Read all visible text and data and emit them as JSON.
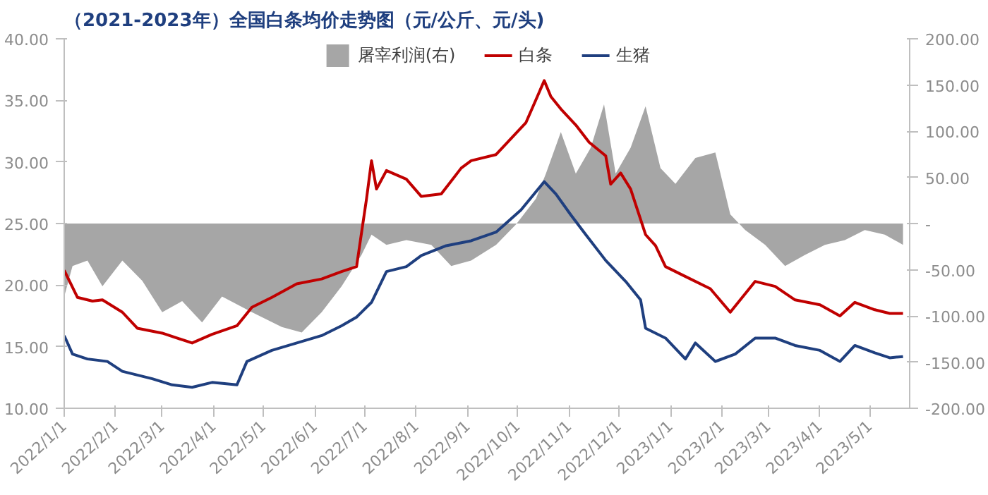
{
  "chart_data": {
    "type": "line",
    "title": "（2021-2023年）全国白条均价走势图（元/公斤、元/头)",
    "xlim": [
      "2022-01-01",
      "2023-05-25"
    ],
    "xticks": [
      {
        "value": "2022-01-01",
        "label": "2022/1/1"
      },
      {
        "value": "2022-02-01",
        "label": "2022/2/1"
      },
      {
        "value": "2022-03-01",
        "label": "2022/3/1"
      },
      {
        "value": "2022-04-01",
        "label": "2022/4/1"
      },
      {
        "value": "2022-05-01",
        "label": "2022/5/1"
      },
      {
        "value": "2022-06-01",
        "label": "2022/6/1"
      },
      {
        "value": "2022-07-01",
        "label": "2022/7/1"
      },
      {
        "value": "2022-08-01",
        "label": "2022/8/1"
      },
      {
        "value": "2022-09-01",
        "label": "2022/9/1"
      },
      {
        "value": "2022-10-01",
        "label": "2022/10/1"
      },
      {
        "value": "2022-11-01",
        "label": "2022/11/1"
      },
      {
        "value": "2022-12-01",
        "label": "2022/12/1"
      },
      {
        "value": "2023-01-01",
        "label": "2023/1/1"
      },
      {
        "value": "2023-02-01",
        "label": "2023/2/1"
      },
      {
        "value": "2023-03-01",
        "label": "2023/3/1"
      },
      {
        "value": "2023-04-01",
        "label": "2023/4/1"
      },
      {
        "value": "2023-05-01",
        "label": "2023/5/1"
      }
    ],
    "ylim": [
      10,
      40
    ],
    "yticks": [
      {
        "value": 10,
        "label": "10.00"
      },
      {
        "value": 15,
        "label": "15.00"
      },
      {
        "value": 20,
        "label": "20.00"
      },
      {
        "value": 25,
        "label": "25.00"
      },
      {
        "value": 30,
        "label": "30.00"
      },
      {
        "value": 35,
        "label": "35.00"
      },
      {
        "value": 40,
        "label": "40.00"
      }
    ],
    "y2lim": [
      -200,
      200
    ],
    "y2ticks": [
      {
        "value": -200,
        "label": "-200.00"
      },
      {
        "value": -150,
        "label": "-150.00"
      },
      {
        "value": -100,
        "label": "-100.00"
      },
      {
        "value": -50,
        "label": "-50.00"
      },
      {
        "value": 0,
        "label": "-"
      },
      {
        "value": 50,
        "label": "50.00"
      },
      {
        "value": 100,
        "label": "100.00"
      },
      {
        "value": 150,
        "label": "150.00"
      },
      {
        "value": 200,
        "label": "200.00"
      }
    ],
    "legend": "top",
    "grid": false,
    "series": [
      {
        "name": "屠宰利润(右)",
        "type": "area",
        "axis": "y2",
        "color": "#a6a6a6",
        "x": [
          "2022-01-01",
          "2022-01-06",
          "2022-01-15",
          "2022-01-24",
          "2022-02-05",
          "2022-02-17",
          "2022-03-01",
          "2022-03-13",
          "2022-03-25",
          "2022-04-06",
          "2022-04-24",
          "2022-05-12",
          "2022-05-24",
          "2022-06-05",
          "2022-06-17",
          "2022-06-29",
          "2022-07-05",
          "2022-07-14",
          "2022-07-26",
          "2022-08-10",
          "2022-08-22",
          "2022-09-03",
          "2022-09-18",
          "2022-09-30",
          "2022-10-12",
          "2022-10-18",
          "2022-10-27",
          "2022-11-05",
          "2022-11-14",
          "2022-11-22",
          "2022-11-29",
          "2022-12-08",
          "2022-12-17",
          "2022-12-26",
          "2023-01-04",
          "2023-01-16",
          "2023-01-28",
          "2023-02-06",
          "2023-02-15",
          "2023-02-27",
          "2023-03-11",
          "2023-03-23",
          "2023-04-04",
          "2023-04-16",
          "2023-04-28",
          "2023-05-10",
          "2023-05-21"
        ],
        "values": [
          -79,
          -46,
          -40,
          -68,
          -40,
          -62,
          -96,
          -84,
          -107,
          -79,
          -96,
          -112,
          -118,
          -96,
          -68,
          -34,
          -12,
          -23,
          -18,
          -23,
          -46,
          -40,
          -23,
          -1,
          27,
          54,
          99,
          54,
          82,
          129,
          54,
          82,
          127,
          60,
          43,
          71,
          77,
          10,
          -7,
          -23,
          -46,
          -34,
          -23,
          -18,
          -7,
          -12,
          -23
        ]
      },
      {
        "name": "白条",
        "color": "#c00000",
        "x": [
          "2022-01-01",
          "2022-01-09",
          "2022-01-18",
          "2022-01-24",
          "2022-02-05",
          "2022-02-14",
          "2022-03-01",
          "2022-03-19",
          "2022-03-31",
          "2022-04-15",
          "2022-04-24",
          "2022-05-06",
          "2022-05-21",
          "2022-06-05",
          "2022-06-17",
          "2022-06-26",
          "2022-07-02",
          "2022-07-05",
          "2022-07-08",
          "2022-07-14",
          "2022-07-26",
          "2022-08-04",
          "2022-08-16",
          "2022-08-28",
          "2022-09-03",
          "2022-09-18",
          "2022-10-06",
          "2022-10-17",
          "2022-10-21",
          "2022-10-27",
          "2022-11-05",
          "2022-11-13",
          "2022-11-23",
          "2022-11-26",
          "2022-12-02",
          "2022-12-08",
          "2022-12-17",
          "2022-12-23",
          "2022-12-29",
          "2023-01-10",
          "2023-01-25",
          "2023-02-06",
          "2023-02-21",
          "2023-03-05",
          "2023-03-17",
          "2023-04-01",
          "2023-04-13",
          "2023-04-22",
          "2023-05-04",
          "2023-05-13",
          "2023-05-21"
        ],
        "values": [
          21.2,
          19.0,
          18.7,
          18.8,
          17.8,
          16.5,
          16.1,
          15.3,
          16.0,
          16.7,
          18.2,
          19.0,
          20.1,
          20.5,
          21.1,
          21.5,
          27.0,
          30.1,
          27.8,
          29.3,
          28.6,
          27.2,
          27.4,
          29.5,
          30.1,
          30.6,
          33.2,
          36.6,
          35.3,
          34.3,
          33.0,
          31.6,
          30.5,
          28.2,
          29.1,
          27.8,
          24.1,
          23.2,
          21.5,
          20.7,
          19.7,
          17.8,
          20.3,
          19.9,
          18.8,
          18.4,
          17.5,
          18.6,
          18.0,
          17.7,
          17.7
        ]
      },
      {
        "name": "生猪",
        "color": "#1f3f7f",
        "x": [
          "2022-01-01",
          "2022-01-06",
          "2022-01-15",
          "2022-01-27",
          "2022-02-05",
          "2022-02-23",
          "2022-03-07",
          "2022-03-19",
          "2022-03-31",
          "2022-04-15",
          "2022-04-21",
          "2022-05-06",
          "2022-05-21",
          "2022-06-05",
          "2022-06-17",
          "2022-06-26",
          "2022-07-05",
          "2022-07-14",
          "2022-07-26",
          "2022-08-04",
          "2022-08-19",
          "2022-09-03",
          "2022-09-18",
          "2022-10-03",
          "2022-10-17",
          "2022-10-24",
          "2022-11-02",
          "2022-11-11",
          "2022-11-23",
          "2022-12-05",
          "2022-12-14",
          "2022-12-17",
          "2022-12-29",
          "2023-01-10",
          "2023-01-16",
          "2023-01-28",
          "2023-02-09",
          "2023-02-21",
          "2023-03-05",
          "2023-03-17",
          "2023-04-01",
          "2023-04-13",
          "2023-04-22",
          "2023-05-04",
          "2023-05-13",
          "2023-05-21"
        ],
        "values": [
          15.9,
          14.4,
          14.0,
          13.8,
          13.0,
          12.4,
          11.9,
          11.7,
          12.1,
          11.9,
          13.8,
          14.7,
          15.3,
          15.9,
          16.7,
          17.4,
          18.6,
          21.1,
          21.5,
          22.4,
          23.2,
          23.6,
          24.3,
          26.1,
          28.4,
          27.4,
          25.7,
          24.1,
          22.0,
          20.3,
          18.8,
          16.5,
          15.7,
          14.0,
          15.3,
          13.8,
          14.4,
          15.7,
          15.7,
          15.1,
          14.7,
          13.8,
          15.1,
          14.5,
          14.1,
          14.2
        ]
      }
    ]
  }
}
